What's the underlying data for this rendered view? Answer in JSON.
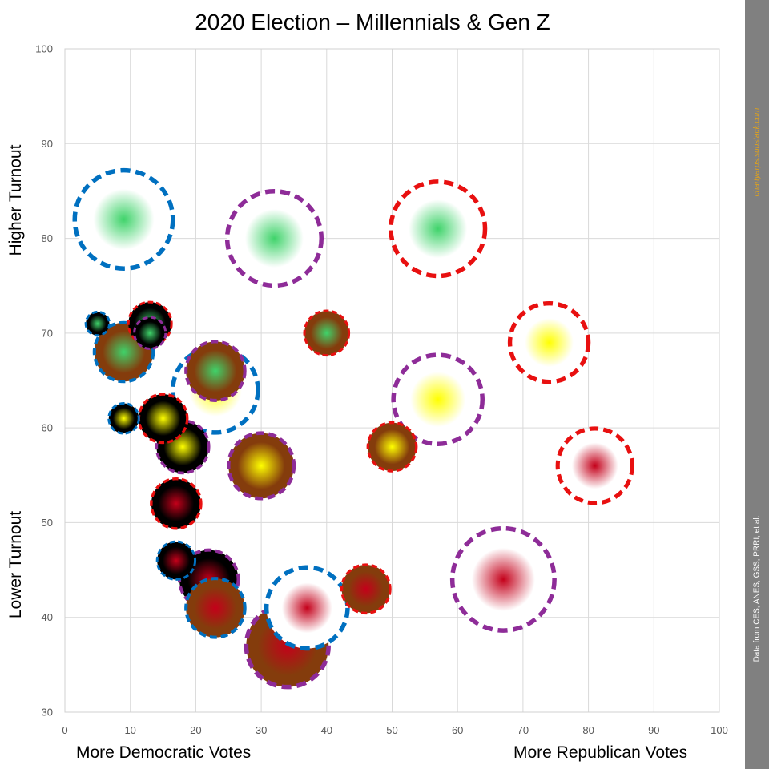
{
  "chart_data": {
    "type": "scatter",
    "title": "2020 Election – Millennials & Gen Z",
    "x_label_left": "More Democratic Votes",
    "x_label_right": "More Republican Votes",
    "y_label_top": "Higher Turnout",
    "y_label_bottom": "Lower Turnout",
    "xlim": [
      0,
      100
    ],
    "ylim": [
      30,
      100
    ],
    "x_ticks": [
      0,
      10,
      20,
      30,
      40,
      50,
      60,
      70,
      80,
      90,
      100
    ],
    "y_ticks": [
      30,
      40,
      50,
      60,
      70,
      80,
      90,
      100
    ],
    "grid": true,
    "side_credit": "chartyarps.substack.com",
    "side_source": "Data from CES, ANES, GSS, PRRI, et al.",
    "colors": {
      "green": "#3fd36a",
      "yellow": "#ffff00",
      "red": "#c4001a",
      "blue_outline": "#0070c0",
      "purple_outline": "#8e2c98",
      "red_outline": "#e81010",
      "fill_white": "#ffffff",
      "fill_black": "#000000",
      "fill_brown": "#843c0c"
    },
    "points": [
      {
        "x": 9,
        "y": 82,
        "size": 7.5,
        "center": "green",
        "fill": "white",
        "outline": "blue"
      },
      {
        "x": 32,
        "y": 80,
        "size": 7.2,
        "center": "green",
        "fill": "white",
        "outline": "purple"
      },
      {
        "x": 57,
        "y": 81,
        "size": 7.2,
        "center": "green",
        "fill": "white",
        "outline": "red"
      },
      {
        "x": 74,
        "y": 69,
        "size": 6.0,
        "center": "yellow",
        "fill": "white",
        "outline": "red"
      },
      {
        "x": 57,
        "y": 63,
        "size": 6.8,
        "center": "yellow",
        "fill": "white",
        "outline": "purple"
      },
      {
        "x": 23,
        "y": 64,
        "size": 6.5,
        "center": "yellow",
        "fill": "white",
        "outline": "blue"
      },
      {
        "x": 81,
        "y": 56,
        "size": 5.7,
        "center": "red",
        "fill": "white",
        "outline": "red"
      },
      {
        "x": 67,
        "y": 44,
        "size": 7.8,
        "center": "red",
        "fill": "white",
        "outline": "purple"
      },
      {
        "x": 37,
        "y": 41,
        "size": 6.2,
        "center": "red",
        "fill": "white",
        "outline": "blue"
      },
      {
        "x": 5,
        "y": 71,
        "size": 1.8,
        "center": "green",
        "fill": "black",
        "outline": "blue"
      },
      {
        "x": 13,
        "y": 71,
        "size": 3.3,
        "center": "green",
        "fill": "black",
        "outline": "red"
      },
      {
        "x": 13,
        "y": 70,
        "size": 2.4,
        "center": "green",
        "fill": "black",
        "outline": "purple"
      },
      {
        "x": 9,
        "y": 61,
        "size": 2.3,
        "center": "yellow",
        "fill": "black",
        "outline": "blue"
      },
      {
        "x": 15,
        "y": 61,
        "size": 3.7,
        "center": "yellow",
        "fill": "black",
        "outline": "red"
      },
      {
        "x": 18,
        "y": 58,
        "size": 4.0,
        "center": "yellow",
        "fill": "black",
        "outline": "purple"
      },
      {
        "x": 17,
        "y": 52,
        "size": 3.8,
        "center": "red",
        "fill": "black",
        "outline": "red"
      },
      {
        "x": 17,
        "y": 46,
        "size": 2.9,
        "center": "red",
        "fill": "black",
        "outline": "blue"
      },
      {
        "x": 22,
        "y": 44,
        "size": 4.5,
        "center": "red",
        "fill": "black",
        "outline": "purple"
      },
      {
        "x": 9,
        "y": 68,
        "size": 4.5,
        "center": "green",
        "fill": "brown",
        "outline": "blue"
      },
      {
        "x": 23,
        "y": 66,
        "size": 4.5,
        "center": "green",
        "fill": "brown",
        "outline": "purple"
      },
      {
        "x": 40,
        "y": 70,
        "size": 3.4,
        "center": "green",
        "fill": "brown",
        "outline": "red"
      },
      {
        "x": 30,
        "y": 56,
        "size": 5.0,
        "center": "yellow",
        "fill": "brown",
        "outline": "purple"
      },
      {
        "x": 50,
        "y": 58,
        "size": 3.7,
        "center": "yellow",
        "fill": "brown",
        "outline": "red"
      },
      {
        "x": 46,
        "y": 43,
        "size": 3.7,
        "center": "red",
        "fill": "brown",
        "outline": "red"
      },
      {
        "x": 23,
        "y": 41,
        "size": 4.5,
        "center": "red",
        "fill": "brown",
        "outline": "blue"
      },
      {
        "x": 34,
        "y": 37,
        "size": 6.3,
        "center": "red",
        "fill": "brown",
        "outline": "purple"
      }
    ]
  }
}
